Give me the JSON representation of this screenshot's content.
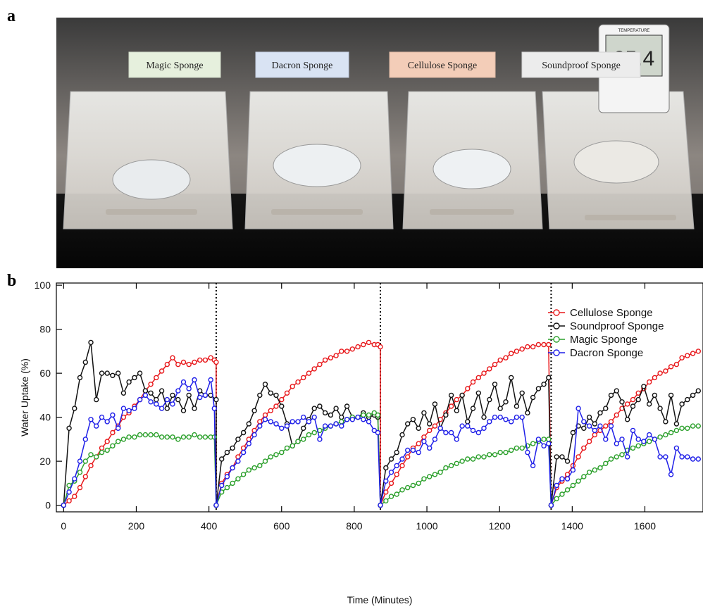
{
  "panel_a": {
    "letter": "a",
    "labels": [
      {
        "text": "Magic Sponge",
        "color": "#e6f0dd"
      },
      {
        "text": "Dacron Sponge",
        "color": "#d9e3f3"
      },
      {
        "text": "Cellulose Sponge",
        "color": "#f3cdb8"
      },
      {
        "text": "Soundproof Sponge",
        "color": "#ececec"
      }
    ],
    "thermometer": {
      "label": "TEMPERATURE",
      "reading": "25.4"
    }
  },
  "panel_b": {
    "letter": "b"
  },
  "chart_data": {
    "type": "line",
    "xlabel": "Time (Minutes)",
    "ylabel": "Water Uptake (%)",
    "xlim": [
      -20,
      1760
    ],
    "ylim": [
      -3,
      101
    ],
    "xticks": [
      0,
      200,
      400,
      600,
      800,
      1000,
      1200,
      1400,
      1600
    ],
    "yticks": [
      0,
      20,
      40,
      60,
      80,
      100
    ],
    "cycle_boundaries": [
      420,
      872,
      1342
    ],
    "grid": false,
    "legend_position": "top-right",
    "series": [
      {
        "name": "Cellulose Sponge",
        "color": "#e8191c",
        "x": [
          0,
          15,
          30,
          45,
          60,
          75,
          90,
          105,
          120,
          135,
          150,
          165,
          180,
          195,
          210,
          225,
          240,
          255,
          270,
          285,
          300,
          315,
          330,
          345,
          360,
          375,
          390,
          405,
          415,
          420,
          420,
          435,
          450,
          465,
          480,
          495,
          510,
          525,
          540,
          555,
          570,
          585,
          600,
          615,
          630,
          645,
          660,
          675,
          690,
          705,
          720,
          735,
          750,
          765,
          780,
          795,
          810,
          825,
          840,
          855,
          865,
          872,
          872,
          887,
          902,
          917,
          932,
          947,
          962,
          977,
          992,
          1007,
          1022,
          1037,
          1052,
          1067,
          1082,
          1097,
          1112,
          1127,
          1142,
          1157,
          1172,
          1187,
          1202,
          1217,
          1232,
          1247,
          1262,
          1277,
          1292,
          1307,
          1322,
          1335,
          1342,
          1342,
          1357,
          1372,
          1387,
          1402,
          1417,
          1432,
          1447,
          1462,
          1477,
          1492,
          1507,
          1522,
          1537,
          1552,
          1567,
          1582,
          1597,
          1612,
          1627,
          1642,
          1657,
          1672,
          1687,
          1702,
          1717,
          1732,
          1747
        ],
        "y": [
          0,
          2,
          4,
          8,
          13,
          18,
          22,
          26,
          29,
          33,
          36,
          40,
          42,
          45,
          48,
          52,
          55,
          58,
          61,
          64,
          67,
          64,
          65,
          64,
          65,
          66,
          66,
          67,
          66,
          65,
          0,
          10,
          14,
          17,
          22,
          26,
          30,
          34,
          38,
          41,
          43,
          45,
          48,
          51,
          54,
          56,
          58,
          60,
          62,
          64,
          66,
          67,
          68,
          70,
          70,
          71,
          72,
          73,
          74,
          73,
          73,
          72,
          0,
          6,
          10,
          14,
          18,
          22,
          26,
          28,
          31,
          34,
          36,
          39,
          42,
          45,
          48,
          50,
          53,
          56,
          58,
          60,
          62,
          64,
          66,
          67,
          69,
          70,
          71,
          72,
          72,
          73,
          73,
          73,
          0,
          0,
          8,
          11,
          14,
          18,
          22,
          26,
          29,
          32,
          34,
          36,
          38,
          41,
          44,
          46,
          48,
          51,
          53,
          56,
          58,
          60,
          61,
          63,
          64,
          67,
          68,
          69,
          70
        ]
      },
      {
        "name": "Soundproof Sponge",
        "color": "#111111",
        "x": [
          0,
          15,
          30,
          45,
          60,
          75,
          90,
          105,
          120,
          135,
          150,
          165,
          180,
          195,
          210,
          225,
          240,
          255,
          270,
          285,
          300,
          315,
          330,
          345,
          360,
          375,
          390,
          405,
          420,
          420,
          435,
          450,
          465,
          480,
          495,
          510,
          525,
          540,
          555,
          570,
          585,
          600,
          615,
          630,
          645,
          660,
          675,
          690,
          705,
          720,
          735,
          750,
          765,
          780,
          795,
          810,
          825,
          840,
          855,
          865,
          872,
          887,
          902,
          917,
          932,
          947,
          962,
          977,
          992,
          1007,
          1022,
          1037,
          1052,
          1067,
          1082,
          1097,
          1112,
          1127,
          1142,
          1157,
          1172,
          1187,
          1202,
          1217,
          1232,
          1247,
          1262,
          1277,
          1292,
          1307,
          1322,
          1335,
          1342,
          1357,
          1372,
          1387,
          1402,
          1417,
          1432,
          1447,
          1462,
          1477,
          1492,
          1507,
          1522,
          1537,
          1552,
          1567,
          1582,
          1597,
          1612,
          1627,
          1642,
          1657,
          1672,
          1687,
          1702,
          1717,
          1732,
          1747
        ],
        "y": [
          0,
          35,
          44,
          58,
          65,
          74,
          48,
          60,
          60,
          59,
          60,
          51,
          56,
          58,
          60,
          52,
          51,
          48,
          52,
          44,
          50,
          48,
          43,
          50,
          44,
          52,
          50,
          50,
          48,
          0,
          21,
          24,
          26,
          30,
          33,
          37,
          43,
          50,
          55,
          51,
          50,
          45,
          37,
          27,
          29,
          35,
          39,
          44,
          45,
          42,
          41,
          44,
          40,
          45,
          40,
          40,
          42,
          40,
          41,
          40,
          0,
          17,
          21,
          24,
          32,
          37,
          39,
          35,
          42,
          37,
          46,
          35,
          41,
          50,
          43,
          50,
          38,
          44,
          51,
          40,
          48,
          55,
          44,
          47,
          58,
          45,
          51,
          42,
          49,
          53,
          55,
          58,
          0,
          22,
          22,
          20,
          33,
          36,
          35,
          40,
          37,
          42,
          44,
          50,
          52,
          47,
          39,
          45,
          48,
          54,
          46,
          50,
          44,
          38,
          50,
          37,
          46,
          48,
          50,
          52
        ]
      },
      {
        "name": "Magic Sponge",
        "color": "#2ca02c",
        "x": [
          0,
          15,
          30,
          45,
          60,
          75,
          90,
          105,
          120,
          135,
          150,
          165,
          180,
          195,
          210,
          225,
          240,
          255,
          270,
          285,
          300,
          315,
          330,
          345,
          360,
          375,
          390,
          405,
          415,
          420,
          435,
          450,
          465,
          480,
          495,
          510,
          525,
          540,
          555,
          570,
          585,
          600,
          615,
          630,
          645,
          660,
          675,
          690,
          705,
          720,
          735,
          750,
          765,
          780,
          795,
          810,
          825,
          840,
          855,
          865,
          872,
          887,
          902,
          917,
          932,
          947,
          962,
          977,
          992,
          1007,
          1022,
          1037,
          1052,
          1067,
          1082,
          1097,
          1112,
          1127,
          1142,
          1157,
          1172,
          1187,
          1202,
          1217,
          1232,
          1247,
          1262,
          1277,
          1292,
          1307,
          1322,
          1335,
          1342,
          1357,
          1372,
          1387,
          1402,
          1417,
          1432,
          1447,
          1462,
          1477,
          1492,
          1507,
          1522,
          1537,
          1552,
          1567,
          1582,
          1597,
          1612,
          1627,
          1642,
          1657,
          1672,
          1687,
          1702,
          1717,
          1732,
          1747
        ],
        "y": [
          0,
          9,
          11,
          15,
          20,
          23,
          22,
          24,
          25,
          27,
          29,
          30,
          31,
          31,
          32,
          32,
          32,
          32,
          31,
          31,
          31,
          30,
          31,
          31,
          32,
          31,
          31,
          31,
          31,
          0,
          6,
          8,
          10,
          12,
          14,
          16,
          17,
          18,
          20,
          22,
          23,
          24,
          26,
          27,
          29,
          30,
          32,
          33,
          34,
          35,
          36,
          37,
          38,
          39,
          40,
          40,
          41,
          41,
          42,
          41,
          0,
          2,
          4,
          5,
          7,
          8,
          9,
          10,
          12,
          13,
          14,
          15,
          17,
          18,
          19,
          20,
          21,
          21,
          22,
          22,
          23,
          23,
          24,
          24,
          25,
          26,
          26,
          27,
          28,
          29,
          30,
          30,
          0,
          3,
          5,
          7,
          9,
          11,
          13,
          15,
          16,
          17,
          19,
          21,
          22,
          23,
          25,
          26,
          27,
          28,
          29,
          30,
          31,
          32,
          33,
          34,
          35,
          35,
          36,
          36
        ]
      },
      {
        "name": "Dacron Sponge",
        "color": "#1f1fe8",
        "x": [
          0,
          15,
          30,
          45,
          60,
          75,
          90,
          105,
          120,
          135,
          150,
          165,
          180,
          195,
          210,
          225,
          240,
          255,
          270,
          285,
          300,
          315,
          330,
          345,
          360,
          375,
          390,
          405,
          415,
          420,
          435,
          450,
          465,
          480,
          495,
          510,
          525,
          540,
          555,
          570,
          585,
          600,
          615,
          630,
          645,
          660,
          675,
          690,
          705,
          720,
          735,
          750,
          765,
          780,
          795,
          810,
          825,
          840,
          855,
          865,
          872,
          887,
          902,
          917,
          932,
          947,
          962,
          977,
          992,
          1007,
          1022,
          1037,
          1052,
          1067,
          1082,
          1097,
          1112,
          1127,
          1142,
          1157,
          1172,
          1187,
          1202,
          1217,
          1232,
          1247,
          1262,
          1277,
          1292,
          1307,
          1322,
          1335,
          1342,
          1357,
          1372,
          1387,
          1402,
          1417,
          1432,
          1447,
          1462,
          1477,
          1492,
          1507,
          1522,
          1537,
          1552,
          1567,
          1582,
          1597,
          1612,
          1627,
          1642,
          1657,
          1672,
          1687,
          1702,
          1717,
          1732,
          1747
        ],
        "y": [
          0,
          6,
          12,
          20,
          30,
          39,
          36,
          40,
          38,
          41,
          35,
          44,
          43,
          44,
          48,
          50,
          47,
          46,
          44,
          48,
          46,
          52,
          56,
          53,
          57,
          49,
          50,
          57,
          44,
          0,
          9,
          13,
          17,
          20,
          24,
          28,
          32,
          36,
          39,
          38,
          37,
          35,
          36,
          38,
          38,
          40,
          38,
          40,
          30,
          36,
          36,
          37,
          36,
          39,
          39,
          40,
          39,
          38,
          34,
          33,
          0,
          11,
          15,
          18,
          21,
          25,
          25,
          24,
          29,
          26,
          30,
          35,
          33,
          33,
          30,
          36,
          36,
          34,
          33,
          35,
          38,
          40,
          40,
          39,
          38,
          40,
          40,
          24,
          18,
          30,
          27,
          28,
          0,
          9,
          12,
          12,
          16,
          44,
          38,
          36,
          34,
          36,
          30,
          36,
          28,
          30,
          22,
          34,
          30,
          29,
          32,
          30,
          22,
          22,
          14,
          26,
          22,
          22,
          21,
          21
        ]
      }
    ]
  }
}
